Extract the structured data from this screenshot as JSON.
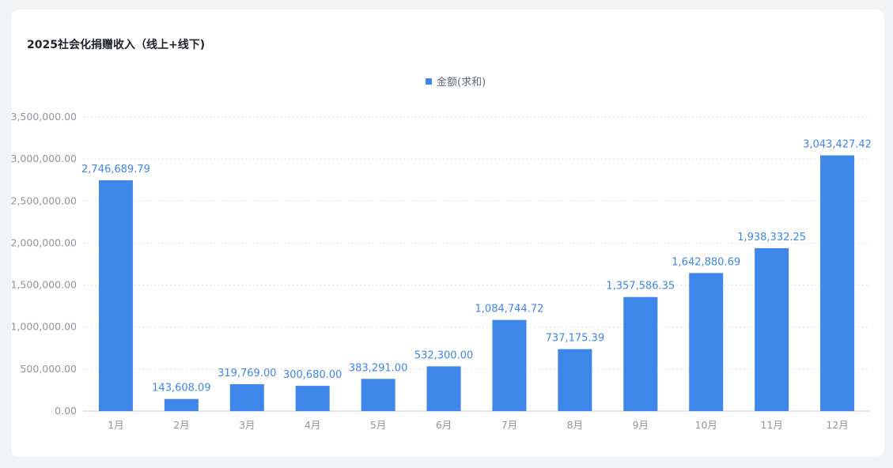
{
  "chart_data": {
    "type": "bar",
    "title": "2025社会化捐赠收入（线上+线下)",
    "xlabel": "",
    "ylabel": "",
    "legend": {
      "position": "top-center",
      "entries": [
        "金额(求和)"
      ]
    },
    "categories": [
      "1月",
      "2月",
      "3月",
      "4月",
      "5月",
      "6月",
      "7月",
      "8月",
      "9月",
      "10月",
      "11月",
      "12月"
    ],
    "series": [
      {
        "name": "金额(求和)",
        "color": "#3e86ea",
        "values": [
          2746689.79,
          143608.09,
          319769.0,
          300680.0,
          383291.0,
          532300.0,
          1084744.72,
          737175.39,
          1357586.35,
          1642880.69,
          1938332.25,
          3043427.42
        ],
        "labels": [
          "2,746,689.79",
          "143,608.09",
          "319,769.00",
          "300,680.00",
          "383,291.00",
          "532,300.00",
          "1,084,744.72",
          "737,175.39",
          "1,357,586.35",
          "1,642,880.69",
          "1,938,332.25",
          "3,043,427.42"
        ]
      }
    ],
    "yticks": [
      0,
      500000,
      1000000,
      1500000,
      2000000,
      2500000,
      3000000,
      3500000
    ],
    "ytick_labels": [
      "0.00",
      "500,000.00",
      "1,000,000.00",
      "1,500,000.00",
      "2,000,000.00",
      "2,500,000.00",
      "3,000,000.00",
      "3,500,000.00"
    ],
    "ylim": [
      0,
      3500000
    ],
    "grid": true
  }
}
